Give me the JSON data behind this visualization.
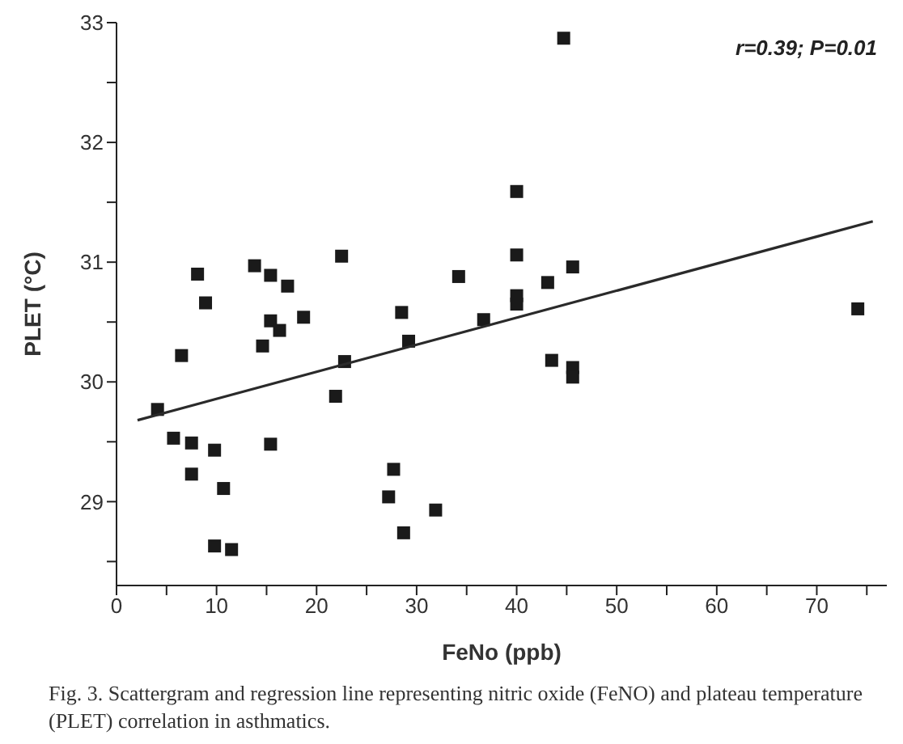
{
  "chart_data": {
    "type": "scatter",
    "xlabel": "FeNo (ppb)",
    "ylabel": "PLET (°C)",
    "xlim": [
      0,
      77
    ],
    "ylim": [
      28.3,
      33
    ],
    "xticks": [
      0,
      {
        "value": 5,
        "label": null
      },
      10,
      {
        "value": 15,
        "label": null
      },
      20,
      {
        "value": 25,
        "label": null
      },
      30,
      {
        "value": 35,
        "label": null
      },
      40,
      {
        "value": 45,
        "label": null
      },
      50,
      {
        "value": 55,
        "label": null
      },
      60,
      {
        "value": 65,
        "label": null
      },
      70,
      {
        "value": 75,
        "label": null
      }
    ],
    "yticks": [
      {
        "value": 28.5,
        "label": null
      },
      29,
      {
        "value": 29.5,
        "label": null
      },
      30,
      {
        "value": 30.5,
        "label": null
      },
      31,
      {
        "value": 31.5,
        "label": null
      },
      32,
      {
        "value": 32.5,
        "label": null
      },
      33
    ],
    "grid": false,
    "legend": false,
    "series": [
      {
        "type": "scatter",
        "marker": "square",
        "color": "#1a1a1a",
        "x": [
          4.1,
          5.7,
          7.5,
          7.5,
          6.5,
          8.1,
          8.9,
          9.8,
          10.7,
          9.8,
          11.5,
          13.8,
          15.4,
          17.1,
          15.4,
          16.3,
          14.6,
          18.7,
          15.4,
          22.5,
          21.9,
          22.8,
          28.5,
          29.2,
          27.7,
          27.2,
          28.7,
          31.9,
          34.2,
          36.7,
          44.7,
          40,
          40,
          40,
          40,
          43.1,
          45.6,
          43.5,
          45.6,
          45.6,
          74.1
        ],
        "values": [
          29.77,
          29.53,
          29.49,
          29.23,
          30.22,
          30.9,
          30.66,
          29.43,
          29.11,
          28.63,
          28.6,
          30.97,
          30.89,
          30.8,
          30.51,
          30.43,
          30.3,
          30.54,
          29.48,
          31.05,
          29.88,
          30.17,
          30.58,
          30.34,
          29.27,
          29.04,
          28.74,
          28.93,
          30.88,
          30.52,
          32.87,
          31.59,
          31.06,
          30.72,
          30.65,
          30.83,
          30.96,
          30.18,
          30.12,
          30.04,
          30.61
        ]
      },
      {
        "type": "line",
        "marker": "none",
        "line_style": "solid",
        "color": "#2a2a2a",
        "x": [
          2.1,
          75.6
        ],
        "values": [
          29.68,
          31.34
        ]
      }
    ],
    "annotations": [
      "r=0.39; P=0.01",
      "Fig. 3. Scattergram and regression line representing nitric oxide (FeNO) and plateau temperature (PLET) correlation in asthmatics."
    ]
  }
}
